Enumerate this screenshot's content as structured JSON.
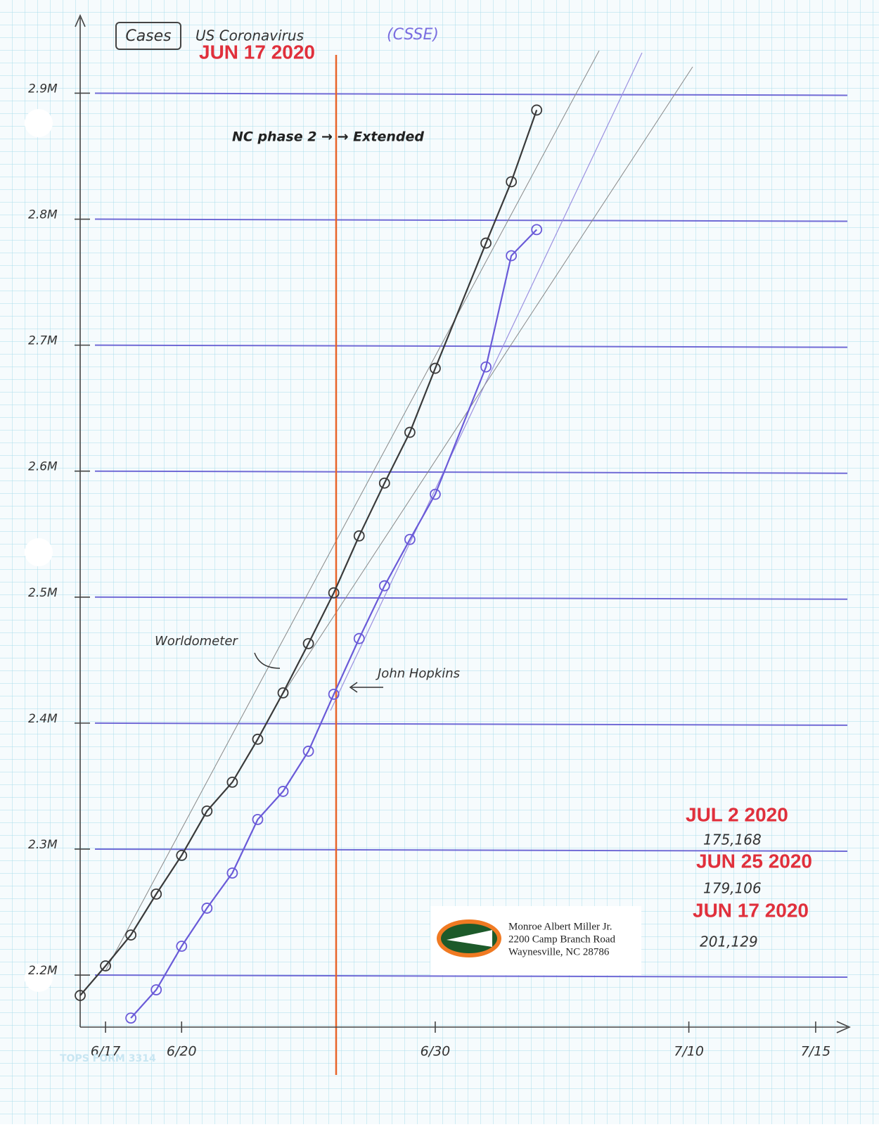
{
  "chart_data": {
    "type": "line",
    "label": "Cases",
    "title": "US Coronavirus",
    "subtitle": "(CSSE)",
    "annotations": [
      "NC phase 2 → → Extended"
    ],
    "stamps": [
      "JUN 17 2020",
      "JUL 2 2020",
      "JUN 25 2020",
      "JUN 17 2020"
    ],
    "notes": [
      "175,168",
      "179,106",
      "201,129"
    ],
    "address": [
      "Monroe Albert Miller Jr.",
      "2200 Camp Branch Road",
      "Waynesville, NC  28786"
    ],
    "form_label": "TOPS FORM 3314",
    "xlim": [
      16,
      46.25
    ],
    "xticks": [
      {
        "value": 17,
        "label": "6/17"
      },
      {
        "value": 20,
        "label": "6/20"
      },
      {
        "value": 30,
        "label": "6/30"
      },
      {
        "value": 40,
        "label": "7/10"
      },
      {
        "value": 45,
        "label": "7/15"
      }
    ],
    "ylim": [
      2158700,
      2960000
    ],
    "yticks": [
      {
        "value": 2200000,
        "label": "2.2M"
      },
      {
        "value": 2300000,
        "label": "2.3M"
      },
      {
        "value": 2400000,
        "label": "2.4M"
      },
      {
        "value": 2500000,
        "label": "2.5M"
      },
      {
        "value": 2600000,
        "label": "2.6M"
      },
      {
        "value": 2700000,
        "label": "2.7M"
      },
      {
        "value": 2800000,
        "label": "2.8M"
      },
      {
        "value": 2900000,
        "label": "2.9M"
      }
    ],
    "grid": true,
    "series": [
      {
        "name": "Worldometer",
        "color": "#3a3a3a",
        "x": [
          16,
          17,
          18,
          19,
          20,
          21,
          22,
          23,
          24,
          25,
          26,
          27,
          28,
          29,
          30,
          32,
          33,
          34
        ],
        "values": [
          2183800,
          2207300,
          2231800,
          2264300,
          2295000,
          2330200,
          2353100,
          2387200,
          2424000,
          2463100,
          2503400,
          2548600,
          2590500,
          2630800,
          2681600,
          2781000,
          2829700,
          2886600
        ]
      },
      {
        "name": "John Hopkins",
        "color": "#6a5ad8",
        "x": [
          18,
          19,
          20,
          21,
          22,
          23,
          24,
          25,
          26,
          27,
          28,
          29,
          30,
          32,
          33,
          34
        ],
        "values": [
          2165900,
          2188300,
          2222900,
          2253100,
          2281000,
          2323500,
          2345800,
          2377700,
          2422900,
          2467100,
          2509000,
          2545800,
          2581600,
          2682700,
          2771000,
          2791700
        ]
      }
    ]
  }
}
